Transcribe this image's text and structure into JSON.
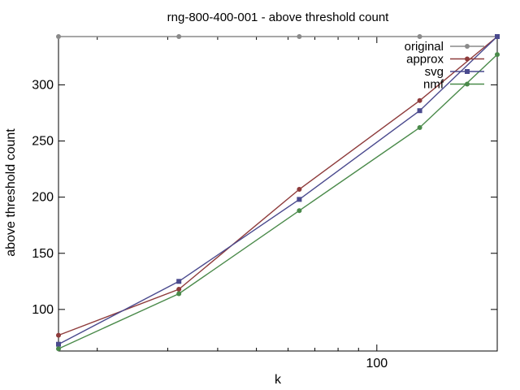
{
  "chart_data": {
    "type": "line",
    "title": "rng-800-400-001 - above threshold count",
    "xlabel": "k",
    "ylabel": "above threshold count",
    "x_scale": "log",
    "xlim": [
      16,
      200
    ],
    "ylim": [
      63,
      343
    ],
    "x_ticks": [
      100
    ],
    "y_ticks": [
      100,
      150,
      200,
      250,
      300
    ],
    "x": [
      16,
      32,
      64,
      128,
      200
    ],
    "grid": false,
    "legend_position": "top-right",
    "series": [
      {
        "name": "original",
        "color": "#8a8a8a",
        "marker": "circle",
        "values": [
          343,
          343,
          343,
          343,
          343
        ]
      },
      {
        "name": "approx",
        "color": "#8e3b3b",
        "marker": "circle",
        "values": [
          77,
          118,
          207,
          286,
          343
        ]
      },
      {
        "name": "svg",
        "color": "#4a4a8e",
        "marker": "square",
        "values": [
          69,
          125,
          198,
          277,
          343
        ]
      },
      {
        "name": "nmf",
        "color": "#4a8a4a",
        "marker": "circle",
        "values": [
          65,
          114,
          188,
          262,
          327
        ]
      }
    ]
  }
}
